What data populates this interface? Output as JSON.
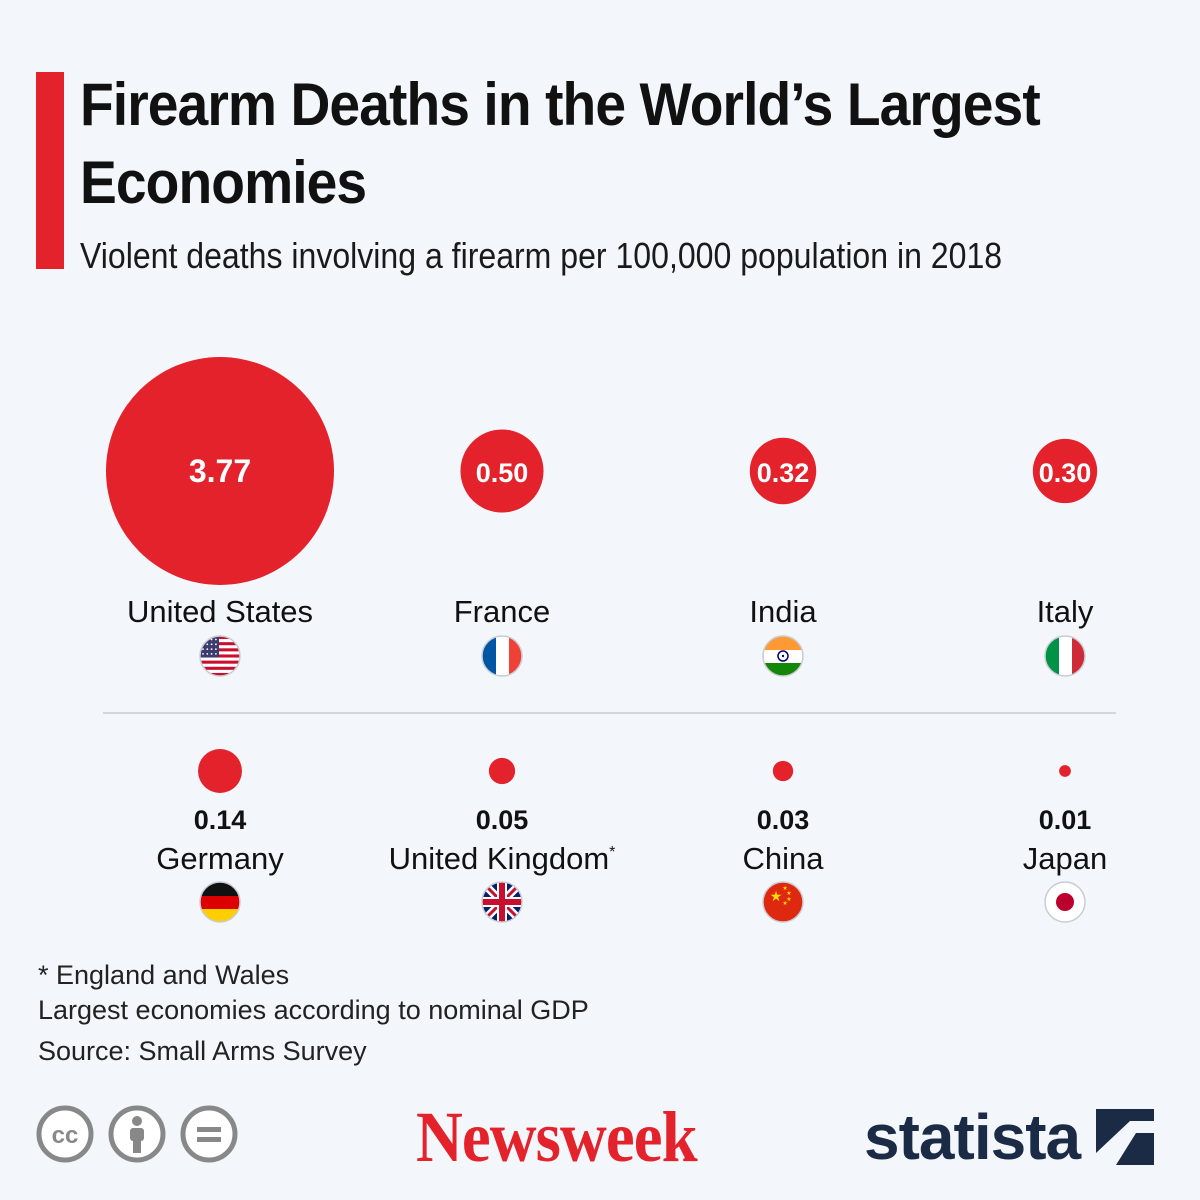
{
  "header": {
    "title": "Firearm Deaths in the World’s Largest Economies",
    "subtitle": "Violent deaths involving a firearm per 100,000 population in 2018"
  },
  "colors": {
    "accent": "#e3222b",
    "text": "#111111",
    "background": "#f3f6fa",
    "statista": "#1b2b46"
  },
  "chart_data": {
    "type": "bubble",
    "unit": "Violent deaths involving a firearm per 100,000 population",
    "series": [
      {
        "country": "United States",
        "value": 3.77,
        "label": "3.77",
        "flag": "us-flag-icon",
        "footnote": ""
      },
      {
        "country": "France",
        "value": 0.5,
        "label": "0.50",
        "flag": "france-flag-icon",
        "footnote": ""
      },
      {
        "country": "India",
        "value": 0.32,
        "label": "0.32",
        "flag": "india-flag-icon",
        "footnote": ""
      },
      {
        "country": "Italy",
        "value": 0.3,
        "label": "0.30",
        "flag": "italy-flag-icon",
        "footnote": ""
      },
      {
        "country": "Germany",
        "value": 0.14,
        "label": "0.14",
        "flag": "germany-flag-icon",
        "footnote": ""
      },
      {
        "country": "United Kingdom",
        "value": 0.05,
        "label": "0.05",
        "flag": "uk-flag-icon",
        "footnote": "*"
      },
      {
        "country": "China",
        "value": 0.03,
        "label": "0.03",
        "flag": "china-flag-icon",
        "footnote": ""
      },
      {
        "country": "Japan",
        "value": 0.01,
        "label": "0.01",
        "flag": "japan-flag-icon",
        "footnote": ""
      }
    ]
  },
  "notes": {
    "footnote": "* England and Wales",
    "definition": "Largest economies according to nominal GDP",
    "source": "Source: Small Arms Survey"
  },
  "branding": {
    "license_icons": [
      "cc-icon",
      "attribution-icon",
      "no-derivatives-icon"
    ],
    "newsweek": "Newsweek",
    "statista": "statista",
    "statista_icon": "statista-logo-icon"
  }
}
